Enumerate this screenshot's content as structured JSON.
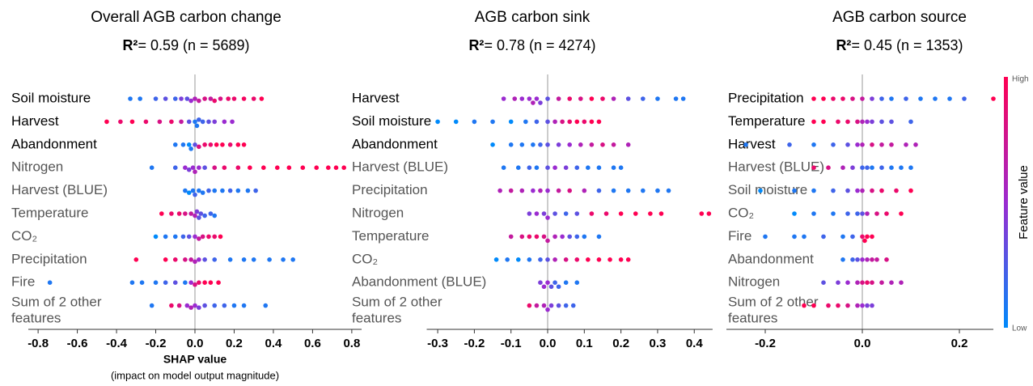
{
  "chart_data": [
    {
      "type": "beeswarm",
      "title": "Overall AGB carbon change",
      "r2_label": "R²",
      "stats": "= 0.59 (n = 5689)",
      "xlabel": "SHAP value",
      "xlabel_note": "(impact on model output magnitude)",
      "categories": [
        "Soil moisture",
        "Harvest",
        "Abandonment",
        "Nitrogen",
        "Harvest (BLUE)",
        "Temperature",
        "CO₂",
        "Precipitation",
        "Fire",
        "Sum of 2 other features"
      ],
      "label_colors": [
        "#000000",
        "#000000",
        "#000000",
        "#555555",
        "#555555",
        "#555555",
        "#555555",
        "#555555",
        "#555555",
        "#555555"
      ],
      "xlim": [
        -0.85,
        0.85
      ],
      "xticks": [
        -0.8,
        -0.6,
        -0.4,
        -0.2,
        {
          "value": 0,
          "label": "0.0"
        },
        0.2,
        0.4,
        0.6,
        0.8
      ],
      "rows": [
        {
          "shap": [
            -0.33,
            -0.28,
            -0.2,
            -0.15,
            -0.1,
            -0.07,
            -0.04,
            -0.02,
            0,
            0.02,
            0.05,
            0.08,
            0.1,
            0.13,
            0.17,
            0.2,
            0.25,
            0.3,
            0.34
          ],
          "feature_value": [
            0.1,
            0.1,
            0.2,
            0.3,
            0.2,
            0.4,
            0.3,
            0.5,
            0.6,
            0.7,
            0.8,
            0.7,
            0.9,
            0.8,
            0.9,
            0.9,
            0.95,
            0.9,
            1
          ]
        },
        {
          "shap": [
            -0.45,
            -0.38,
            -0.32,
            -0.25,
            -0.18,
            -0.12,
            -0.07,
            -0.03,
            0,
            0.01,
            0.02,
            0.04,
            0.07,
            0.1,
            0.15,
            0.19
          ],
          "feature_value": [
            1,
            0.9,
            1,
            0.9,
            0.8,
            0.9,
            0.7,
            0.3,
            0.1,
            0.1,
            0.2,
            0.2,
            0.3,
            0.4,
            0.5,
            0.5
          ]
        },
        {
          "shap": [
            -0.1,
            -0.06,
            -0.03,
            -0.02,
            0,
            0.02,
            0.05,
            0.08,
            0.11,
            0.14,
            0.18,
            0.22,
            0.25
          ],
          "feature_value": [
            0.1,
            0.1,
            0,
            0.1,
            0.3,
            0.8,
            0.9,
            0.9,
            1,
            1,
            0.9,
            1,
            1
          ]
        },
        {
          "shap": [
            -0.22,
            -0.1,
            -0.05,
            -0.03,
            -0.01,
            0,
            0.02,
            0.05,
            0.1,
            0.15,
            0.22,
            0.28,
            0.35,
            0.42,
            0.48,
            0.55,
            0.62,
            0.68,
            0.72,
            0.76
          ],
          "feature_value": [
            0.1,
            0.2,
            0.5,
            0.4,
            0.5,
            0.6,
            0.5,
            0.3,
            0.8,
            0.9,
            0.9,
            1,
            1,
            1,
            1,
            1,
            1,
            1,
            1,
            1
          ]
        },
        {
          "shap": [
            -0.05,
            -0.03,
            -0.01,
            0,
            0.02,
            0.04,
            0.07,
            0.1,
            0.14,
            0.18,
            0.22,
            0.27,
            0.31
          ],
          "feature_value": [
            0.1,
            0,
            0.1,
            0.2,
            0.1,
            0.1,
            0.2,
            0.1,
            0.1,
            0.2,
            0.1,
            0.1,
            0.2
          ]
        },
        {
          "shap": [
            -0.17,
            -0.12,
            -0.08,
            -0.05,
            -0.02,
            0,
            0.01,
            0.02,
            0.03,
            0.05,
            0.08,
            0.1
          ],
          "feature_value": [
            1,
            0.9,
            0.9,
            0.8,
            0.7,
            0.6,
            0.4,
            0.3,
            0.3,
            0.2,
            0.2,
            0.1
          ]
        },
        {
          "shap": [
            -0.2,
            -0.15,
            -0.1,
            -0.06,
            -0.03,
            0,
            0.02,
            0.04,
            0.07,
            0.1,
            0.13
          ],
          "feature_value": [
            0,
            0.1,
            0.1,
            0.2,
            0.3,
            0.5,
            0.7,
            0.8,
            0.9,
            0.9,
            1
          ]
        },
        {
          "shap": [
            -0.3,
            -0.15,
            -0.1,
            -0.05,
            -0.02,
            0,
            0.02,
            0.05,
            0.1,
            0.18,
            0.25,
            0.3,
            0.38,
            0.45,
            0.5
          ],
          "feature_value": [
            1,
            1,
            0.9,
            0.8,
            0.7,
            0.6,
            0.5,
            0.3,
            0.2,
            0.1,
            0.1,
            0.1,
            0.1,
            0.1,
            0.1
          ]
        },
        {
          "shap": [
            -0.74,
            -0.32,
            -0.27,
            -0.2,
            -0.15,
            -0.1,
            -0.05,
            -0.02,
            0,
            0.02,
            0.05,
            0.08,
            0.12
          ],
          "feature_value": [
            0.1,
            0.1,
            0.1,
            0.1,
            0.2,
            0.3,
            0.1,
            0.5,
            0.8,
            0.9,
            1,
            1,
            1
          ]
        },
        {
          "shap": [
            -0.22,
            -0.12,
            -0.08,
            -0.04,
            -0.02,
            0,
            0.02,
            0.05,
            0.1,
            0.15,
            0.2,
            0.25,
            0.36
          ],
          "feature_value": [
            0.1,
            0.9,
            0.8,
            0.5,
            0.6,
            0.5,
            0.4,
            0.3,
            0.2,
            0.2,
            0.1,
            0.1,
            0.1
          ]
        }
      ]
    },
    {
      "type": "beeswarm",
      "title": "AGB carbon sink",
      "r2_label": "R²",
      "stats": "= 0.78 (n = 4274)",
      "categories": [
        "Harvest",
        "Soil moisture",
        "Abandonment",
        "Harvest (BLUE)",
        "Precipitation",
        "Nitrogen",
        "Temperature",
        "CO₂",
        "Abandonment (BLUE)",
        "Sum of 2 other features"
      ],
      "label_colors": [
        "#000000",
        "#000000",
        "#000000",
        "#555555",
        "#555555",
        "#555555",
        "#555555",
        "#555555",
        "#555555",
        "#555555"
      ],
      "xlim": [
        -0.33,
        0.45
      ],
      "xticks": [
        -0.3,
        -0.2,
        -0.1,
        {
          "value": 0,
          "label": "0.0"
        },
        0.1,
        0.2,
        0.3,
        0.4
      ],
      "rows": [
        {
          "shap": [
            -0.12,
            -0.09,
            -0.07,
            -0.05,
            -0.04,
            -0.03,
            -0.02,
            0,
            0.03,
            0.06,
            0.09,
            0.12,
            0.15,
            0.18,
            0.22,
            0.26,
            0.3,
            0.35,
            0.37
          ],
          "feature_value": [
            0.5,
            0.6,
            0.5,
            0.5,
            0.6,
            0.5,
            0.4,
            0.3,
            0.7,
            0.9,
            0.8,
            1,
            0.9,
            0.6,
            0.3,
            0.2,
            0.1,
            0.1,
            0.1
          ]
        },
        {
          "shap": [
            -0.3,
            -0.25,
            -0.2,
            -0.15,
            -0.1,
            -0.06,
            -0.03,
            0,
            0.02,
            0.04,
            0.06,
            0.08,
            0.1,
            0.12,
            0.14
          ],
          "feature_value": [
            0,
            0,
            0.1,
            0.1,
            0,
            0.1,
            0.2,
            0.3,
            0.6,
            0.8,
            0.9,
            1,
            0.9,
            1,
            1
          ]
        },
        {
          "shap": [
            -0.15,
            -0.1,
            -0.07,
            -0.04,
            -0.02,
            0,
            0.03,
            0.06,
            0.09,
            0.12,
            0.15,
            0.18,
            0.22
          ],
          "feature_value": [
            0,
            0.1,
            0.1,
            0.1,
            0.2,
            0.3,
            0.4,
            0.5,
            0.6,
            0.7,
            0.8,
            0.7,
            0.6
          ]
        },
        {
          "shap": [
            -0.12,
            -0.08,
            -0.05,
            -0.03,
            0,
            0.02,
            0.05,
            0.08,
            0.11,
            0.14,
            0.18,
            0.2
          ],
          "feature_value": [
            0.1,
            0.1,
            0.2,
            0.1,
            0.3,
            0.5,
            0.4,
            0.2,
            0.1,
            0.1,
            0.1,
            0.1
          ]
        },
        {
          "shap": [
            -0.13,
            -0.1,
            -0.07,
            -0.04,
            -0.02,
            0,
            0.03,
            0.06,
            0.1,
            0.14,
            0.18,
            0.22,
            0.26,
            0.3,
            0.33
          ],
          "feature_value": [
            0.6,
            0.7,
            0.6,
            0.5,
            0.6,
            0.5,
            0.7,
            0.8,
            0.6,
            0.2,
            0.1,
            0.1,
            0.1,
            0.1,
            0.1
          ]
        },
        {
          "shap": [
            -0.05,
            -0.03,
            -0.01,
            0,
            0.02,
            0.05,
            0.08,
            0.12,
            0.16,
            0.2,
            0.24,
            0.28,
            0.31,
            0.42,
            0.44
          ],
          "feature_value": [
            0.4,
            0.5,
            0.4,
            0.5,
            0.3,
            0.2,
            0.3,
            0.9,
            0.9,
            1,
            1,
            1,
            1,
            1,
            1
          ]
        },
        {
          "shap": [
            -0.1,
            -0.07,
            -0.05,
            -0.03,
            -0.01,
            0,
            0.02,
            0.04,
            0.06,
            0.08,
            0.1,
            0.14
          ],
          "feature_value": [
            0.7,
            0.8,
            0.9,
            0.9,
            0.8,
            0.7,
            0.6,
            0.5,
            0.3,
            0.2,
            0.1,
            0.1
          ]
        },
        {
          "shap": [
            -0.14,
            -0.11,
            -0.08,
            -0.05,
            -0.02,
            0,
            0.02,
            0.05,
            0.08,
            0.11,
            0.14,
            0.17,
            0.2,
            0.22
          ],
          "feature_value": [
            0,
            0.1,
            0,
            0.1,
            0.2,
            0.3,
            0.6,
            0.8,
            0.9,
            1,
            1,
            1,
            1,
            1
          ]
        },
        {
          "shap": [
            -0.02,
            -0.01,
            0,
            0.01,
            0.02,
            0.03,
            0.05,
            0.08
          ],
          "feature_value": [
            0.4,
            0.5,
            0.5,
            0.3,
            0.2,
            0.2,
            0.1,
            0.1
          ]
        },
        {
          "shap": [
            -0.05,
            -0.03,
            -0.01,
            0,
            0.01,
            0.03,
            0.05,
            0.07
          ],
          "feature_value": [
            0.9,
            0.7,
            0.6,
            0.5,
            0.4,
            0.3,
            0.2,
            0.2
          ]
        }
      ]
    },
    {
      "type": "beeswarm",
      "title": "AGB carbon source",
      "r2_label": "R²",
      "stats": "= 0.45 (n = 1353)",
      "categories": [
        "Precipitation",
        "Temperature",
        "Harvest",
        "Harvest (BLUE)",
        "Soil moisture",
        "CO₂",
        "Fire",
        "Abandonment",
        "Nitrogen",
        "Sum of 2 other features"
      ],
      "label_colors": [
        "#000000",
        "#000000",
        "#000000",
        "#555555",
        "#555555",
        "#555555",
        "#555555",
        "#555555",
        "#555555",
        "#555555"
      ],
      "xlim": [
        -0.28,
        0.27
      ],
      "xticks": [
        -0.2,
        {
          "value": 0,
          "label": "0.0"
        },
        0.2
      ],
      "rows": [
        {
          "shap": [
            -0.1,
            -0.08,
            -0.06,
            -0.04,
            -0.02,
            0,
            0.02,
            0.04,
            0.06,
            0.09,
            0.12,
            0.15,
            0.18,
            0.21,
            0.27
          ],
          "feature_value": [
            1,
            1,
            0.9,
            0.9,
            0.8,
            0.7,
            0.4,
            0.2,
            0.1,
            0.2,
            0.1,
            0.1,
            0.1,
            0.2,
            1
          ]
        },
        {
          "shap": [
            -0.1,
            -0.08,
            -0.05,
            -0.03,
            -0.01,
            0,
            0.01,
            0.02,
            0.04,
            0.06,
            0.1
          ],
          "feature_value": [
            1,
            1,
            0.9,
            0.9,
            0.8,
            0.6,
            0.5,
            0.4,
            0.3,
            0.3,
            0.2
          ]
        },
        {
          "shap": [
            -0.24,
            -0.15,
            -0.1,
            -0.06,
            -0.03,
            -0.01,
            0,
            0.02,
            0.04,
            0.06,
            0.09,
            0.11
          ],
          "feature_value": [
            0.1,
            0.2,
            0.1,
            0.2,
            0.3,
            0.5,
            0.6,
            0.8,
            0.7,
            0.7,
            0.6,
            0.6
          ]
        },
        {
          "shap": [
            -0.1,
            -0.07,
            -0.04,
            -0.02,
            0,
            0.01,
            0.02,
            0.04,
            0.06,
            0.08,
            0.1
          ],
          "feature_value": [
            0.9,
            0.8,
            0.6,
            0.4,
            0.2,
            0.2,
            0.1,
            0.2,
            0.1,
            0.1,
            0.1
          ]
        },
        {
          "shap": [
            -0.21,
            -0.14,
            -0.1,
            -0.06,
            -0.03,
            -0.01,
            0,
            0.02,
            0.04,
            0.07,
            0.1
          ],
          "feature_value": [
            0,
            0.1,
            0.1,
            0.2,
            0.3,
            0.5,
            0.6,
            0.8,
            0.9,
            0.9,
            1
          ]
        },
        {
          "shap": [
            -0.14,
            -0.1,
            -0.06,
            -0.03,
            -0.01,
            0,
            0.01,
            0.03,
            0.05,
            0.08
          ],
          "feature_value": [
            0,
            0.1,
            0.1,
            0.2,
            0.2,
            0.3,
            0.6,
            0.8,
            0.9,
            1
          ]
        },
        {
          "shap": [
            -0.2,
            -0.14,
            -0.12,
            -0.08,
            -0.04,
            -0.02,
            0,
            0.005,
            0.01,
            0.02
          ],
          "feature_value": [
            0.1,
            0.1,
            0.1,
            0.2,
            0.1,
            0.2,
            0.9,
            1,
            1,
            1
          ]
        },
        {
          "shap": [
            -0.04,
            -0.02,
            -0.01,
            0,
            0.01,
            0.02,
            0.03,
            0.05
          ],
          "feature_value": [
            0.1,
            0.2,
            0.3,
            0.5,
            0.6,
            0.7,
            0.7,
            0.8
          ]
        },
        {
          "shap": [
            -0.08,
            -0.05,
            -0.03,
            -0.01,
            0,
            0.01,
            0.02,
            0.04,
            0.06,
            0.08
          ],
          "feature_value": [
            0.3,
            0.4,
            0.5,
            0.6,
            0.8,
            0.9,
            0.8,
            0.7,
            0.6,
            0.6
          ]
        },
        {
          "shap": [
            -0.12,
            -0.1,
            -0.07,
            -0.05,
            -0.03,
            -0.01,
            0,
            0.01,
            0.02
          ],
          "feature_value": [
            1,
            1,
            0.9,
            0.9,
            0.8,
            0.6,
            0.5,
            0.4,
            0.4
          ]
        }
      ]
    }
  ],
  "colorbar": {
    "label": "Feature value",
    "high": "High",
    "low": "Low",
    "colors": [
      "#008afb",
      "#9b2bd0",
      "#ff0052"
    ]
  }
}
